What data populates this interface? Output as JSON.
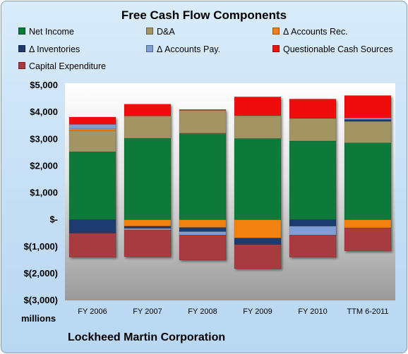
{
  "chart_data": {
    "type": "bar",
    "stacked": true,
    "title": "Free Cash Flow Components",
    "units_label": "millions",
    "footer": "Lockheed Martin Corporation",
    "categories": [
      "FY 2006",
      "FY 2007",
      "FY 2008",
      "FY 2009",
      "FY 2010",
      "TTM 6-2011"
    ],
    "ylim": [
      -3000,
      5000
    ],
    "ytick_values": [
      5000,
      4000,
      3000,
      2000,
      1000,
      0,
      -1000,
      -2000,
      -3000
    ],
    "ytick_labels": [
      "$5,000",
      "$4,000",
      "$3,000",
      "$2,000",
      "$1,000",
      "$-",
      "$(1,000)",
      "$(2,000)",
      "$(3,000)"
    ],
    "grid": false,
    "legend_position": "top",
    "series": [
      {
        "name": "Net Income",
        "color": "#0e7a3a",
        "values": [
          2530,
          3030,
          3220,
          3020,
          2930,
          2860
        ]
      },
      {
        "name": "D&A",
        "color": "#a39563",
        "values": [
          790,
          830,
          850,
          850,
          840,
          800
        ]
      },
      {
        "name": "Δ Accounts Rec.",
        "color": "#f2820f",
        "values": [
          60,
          -240,
          -290,
          -680,
          0,
          -300
        ]
      },
      {
        "name": "Δ Inventories",
        "color": "#1f3b6e",
        "values": [
          -500,
          -80,
          -150,
          -240,
          -240,
          70
        ]
      },
      {
        "name": "Δ Accounts Pay.",
        "color": "#7f9ed6",
        "values": [
          170,
          -60,
          -130,
          0,
          -330,
          60
        ]
      },
      {
        "name": "Questionable Cash Sources",
        "color": "#ee1111",
        "values": [
          270,
          440,
          30,
          700,
          720,
          830
        ]
      },
      {
        "name": "Capital Expenditure",
        "color": "#a83a3f",
        "values": [
          -890,
          -1000,
          -930,
          -900,
          -820,
          -860
        ]
      }
    ]
  }
}
